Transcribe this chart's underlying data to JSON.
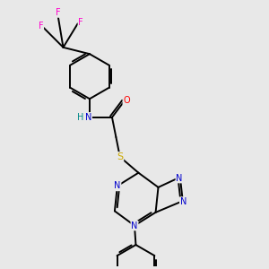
{
  "background_color": "#e8e8e8",
  "bond_color": "#000000",
  "atom_colors": {
    "N": "#0000cc",
    "O": "#ff0000",
    "S": "#ccaa00",
    "F": "#ff00cc",
    "H": "#008888",
    "C": "#000000"
  },
  "figsize": [
    3.0,
    3.0
  ],
  "dpi": 100,
  "lw": 1.4,
  "fs": 7.0
}
